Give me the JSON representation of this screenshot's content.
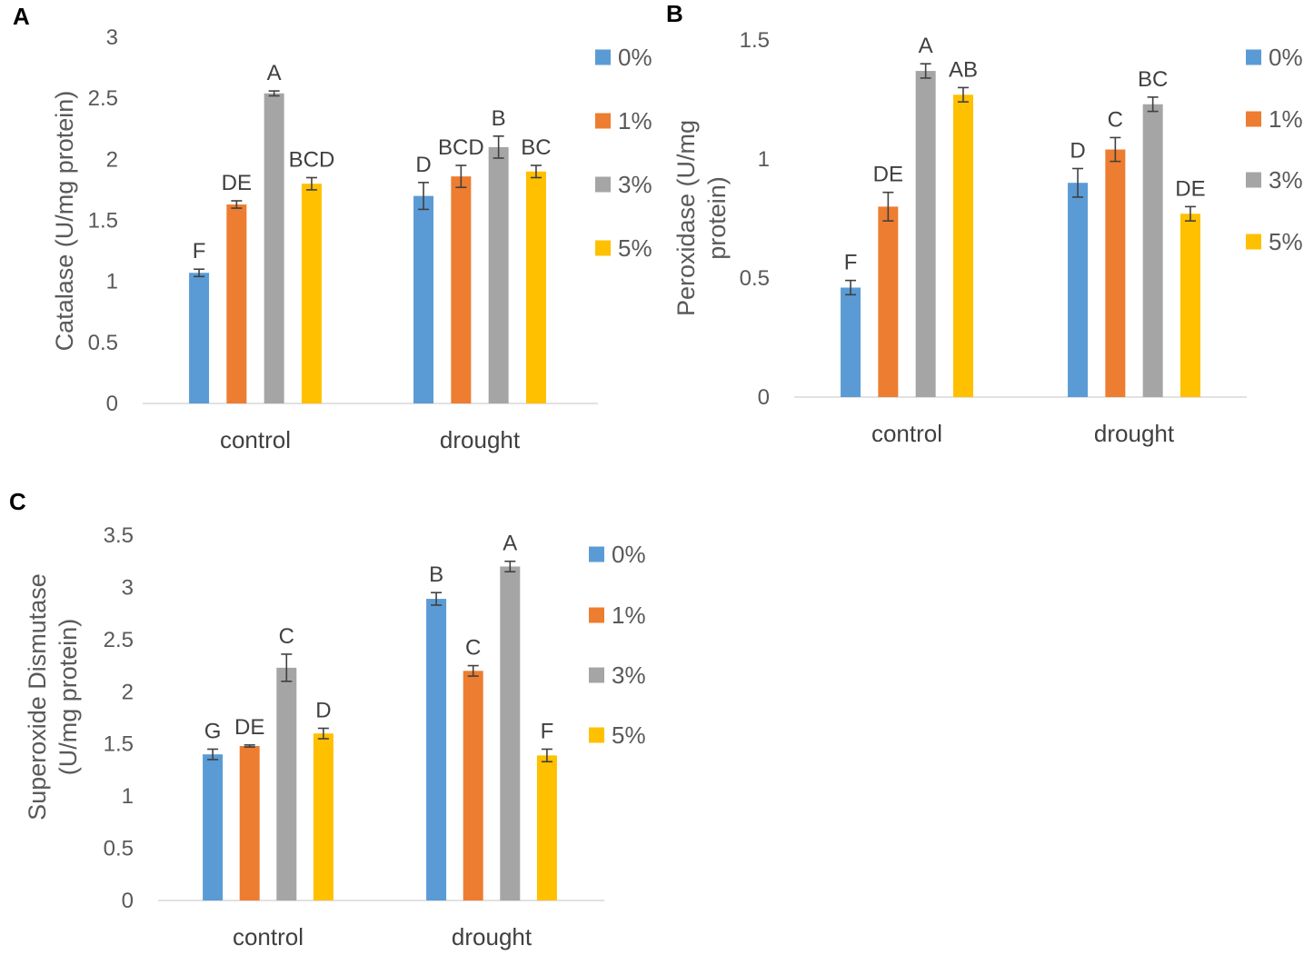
{
  "chart_data": [
    {
      "panel": "A",
      "type": "bar",
      "title": "",
      "xlabel": "",
      "ylabel": "Catalase (U/mg protein)",
      "ylim": [
        0,
        3
      ],
      "yticks": [
        "0",
        "0.5",
        "1",
        "1.5",
        "2",
        "2.5",
        "3"
      ],
      "categories": [
        "control",
        "drought"
      ],
      "series": [
        {
          "name": "0%",
          "color": "#5B9BD5",
          "values": [
            1.07,
            1.7
          ],
          "errors": [
            0.03,
            0.11
          ],
          "letters": [
            "F",
            "D"
          ]
        },
        {
          "name": "1%",
          "color": "#ED7D31",
          "values": [
            1.63,
            1.86
          ],
          "errors": [
            0.03,
            0.09
          ],
          "letters": [
            "DE",
            "BCD"
          ]
        },
        {
          "name": "3%",
          "color": "#A5A5A5",
          "values": [
            2.54,
            2.1
          ],
          "errors": [
            0.02,
            0.09
          ],
          "letters": [
            "A",
            "B"
          ]
        },
        {
          "name": "5%",
          "color": "#FFC000",
          "values": [
            1.8,
            1.9
          ],
          "errors": [
            0.05,
            0.05
          ],
          "letters": [
            "BCD",
            "BC"
          ]
        }
      ],
      "legend_position": "right"
    },
    {
      "panel": "B",
      "type": "bar",
      "title": "",
      "xlabel": "",
      "ylabel": "Peroxidase (U/mg protein)",
      "ylabel_lines": [
        "Peroxidase (U/mg",
        "protein)"
      ],
      "ylim": [
        0,
        1.5
      ],
      "yticks": [
        "0",
        "0.5",
        "1",
        "1.5"
      ],
      "categories": [
        "control",
        "drought"
      ],
      "series": [
        {
          "name": "0%",
          "color": "#5B9BD5",
          "values": [
            0.46,
            0.9
          ],
          "errors": [
            0.03,
            0.06
          ],
          "letters": [
            "F",
            "D"
          ]
        },
        {
          "name": "1%",
          "color": "#ED7D31",
          "values": [
            0.8,
            1.04
          ],
          "errors": [
            0.06,
            0.05
          ],
          "letters": [
            "DE",
            "C"
          ]
        },
        {
          "name": "3%",
          "color": "#A5A5A5",
          "values": [
            1.37,
            1.23
          ],
          "errors": [
            0.03,
            0.03
          ],
          "letters": [
            "A",
            "BC"
          ]
        },
        {
          "name": "5%",
          "color": "#FFC000",
          "values": [
            1.27,
            0.77
          ],
          "errors": [
            0.03,
            0.03
          ],
          "letters": [
            "AB",
            "DE"
          ]
        }
      ],
      "legend_position": "right"
    },
    {
      "panel": "C",
      "type": "bar",
      "title": "",
      "xlabel": "",
      "ylabel": "Superoxide Dismutase (U/mg protein)",
      "ylabel_lines": [
        "Superoxide Dismutase",
        "(U/mg protein)"
      ],
      "ylim": [
        0,
        3.5
      ],
      "yticks": [
        "0",
        "0.5",
        "1",
        "1.5",
        "2",
        "2.5",
        "3",
        "3.5"
      ],
      "categories": [
        "control",
        "drought"
      ],
      "series": [
        {
          "name": "0%",
          "color": "#5B9BD5",
          "values": [
            1.4,
            2.89
          ],
          "errors": [
            0.05,
            0.06
          ],
          "letters": [
            "G",
            "B"
          ]
        },
        {
          "name": "1%",
          "color": "#ED7D31",
          "values": [
            1.48,
            2.2
          ],
          "errors": [
            0.01,
            0.05
          ],
          "letters": [
            "DE",
            "C"
          ]
        },
        {
          "name": "3%",
          "color": "#A5A5A5",
          "values": [
            2.23,
            3.2
          ],
          "errors": [
            0.13,
            0.05
          ],
          "letters": [
            "C",
            "A"
          ]
        },
        {
          "name": "5%",
          "color": "#FFC000",
          "values": [
            1.6,
            1.39
          ],
          "errors": [
            0.05,
            0.06
          ],
          "letters": [
            "D",
            "F"
          ]
        }
      ],
      "legend_position": "right"
    }
  ]
}
